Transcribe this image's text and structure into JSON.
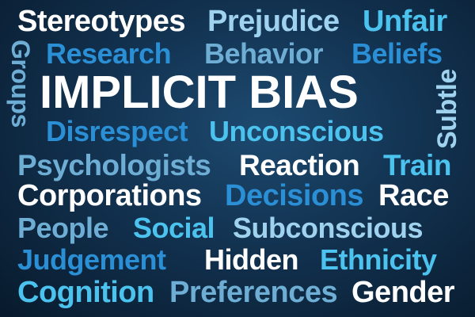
{
  "palette": {
    "background": "#123250",
    "white": "#ffffff",
    "sky": "#9fd2ee",
    "cyan": "#4cc3ee",
    "blue": "#2b8fd6",
    "steel": "#6faed4"
  },
  "words": {
    "stereotypes": "Stereotypes",
    "prejudice": "Prejudice",
    "unfair": "Unfair",
    "groups": "Groups",
    "research": "Research",
    "behavior": "Behavior",
    "beliefs": "Beliefs",
    "implicit_bias": "IMPLICIT BIAS",
    "subtle": "Subtle",
    "disrespect": "Disrespect",
    "unconscious": "Unconscious",
    "psychologists": "Psychologists",
    "reaction": "Reaction",
    "train": "Train",
    "corporations": "Corporations",
    "decisions": "Decisions",
    "race": "Race",
    "people": "People",
    "social": "Social",
    "subconscious": "Subconscious",
    "judgement": "Judgement",
    "hidden": "Hidden",
    "ethnicity": "Ethnicity",
    "cognition": "Cognition",
    "preferences": "Preferences",
    "gender": "Gender"
  }
}
